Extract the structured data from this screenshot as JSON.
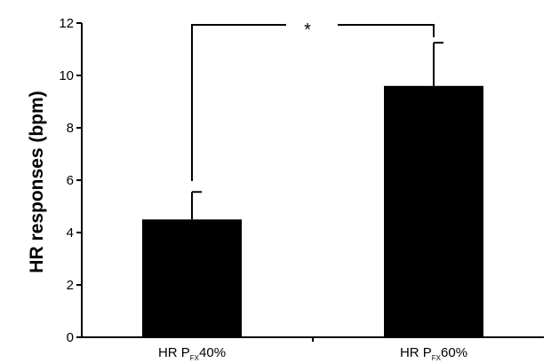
{
  "chart_data": {
    "type": "bar",
    "categories": [
      {
        "prefix": "HR P",
        "subscript": "FX",
        "suffix": "40%"
      },
      {
        "prefix": "HR P",
        "subscript": "FX",
        "suffix": "60%"
      }
    ],
    "values": [
      4.5,
      9.6
    ],
    "error_upper": [
      5.55,
      11.25
    ],
    "ylabel": "HR responses (bpm)",
    "xlabel": "",
    "ylim": [
      0,
      12
    ],
    "yticks": [
      0,
      2,
      4,
      6,
      8,
      10,
      12
    ],
    "bar_color": "#000000",
    "grid": false,
    "significance": {
      "between": [
        0,
        1
      ],
      "label": "*"
    }
  }
}
